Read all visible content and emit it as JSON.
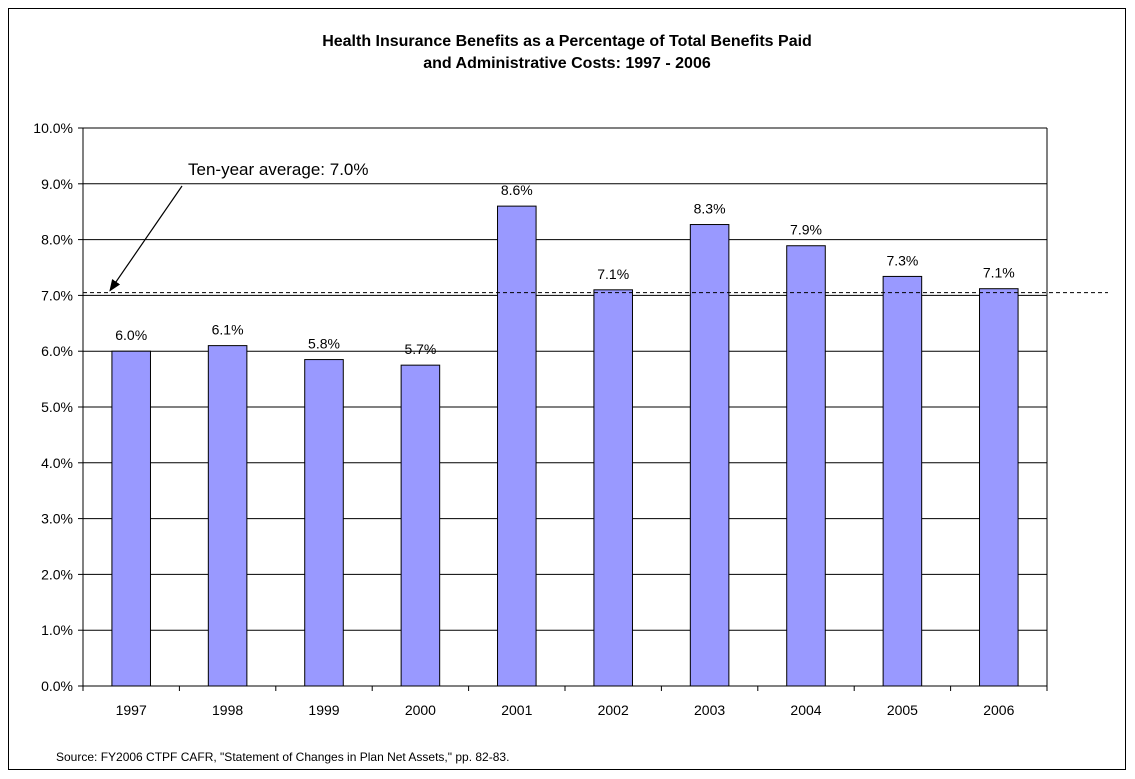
{
  "chart_data": {
    "type": "bar",
    "title": [
      "Health Insurance Benefits as a Percentage of Total Benefits Paid",
      "and Administrative Costs: 1997 - 2006"
    ],
    "categories": [
      "1997",
      "1998",
      "1999",
      "2000",
      "2001",
      "2002",
      "2003",
      "2004",
      "2005",
      "2006"
    ],
    "values": [
      6.0,
      6.1,
      5.85,
      5.75,
      8.6,
      7.1,
      8.27,
      7.89,
      7.34,
      7.12
    ],
    "data_labels": [
      "6.0%",
      "6.1%",
      "5.8%",
      "5.7%",
      "8.6%",
      "7.1%",
      "8.3%",
      "7.9%",
      "7.3%",
      "7.1%"
    ],
    "ylim": [
      0,
      10
    ],
    "yticks": [
      0,
      1,
      2,
      3,
      4,
      5,
      6,
      7,
      8,
      9,
      10
    ],
    "ytick_labels": [
      "0.0%",
      "1.0%",
      "2.0%",
      "3.0%",
      "4.0%",
      "5.0%",
      "6.0%",
      "7.0%",
      "8.0%",
      "9.0%",
      "10.0%"
    ],
    "grid": true,
    "bar_color": "#9999ff",
    "reference_line": {
      "value": 7.05,
      "style": "dashed"
    },
    "annotation": "Ten-year average: 7.0%"
  },
  "source": "Source: FY2006 CTPF CAFR, \"Statement of Changes in Plan Net Assets,\" pp. 82-83."
}
